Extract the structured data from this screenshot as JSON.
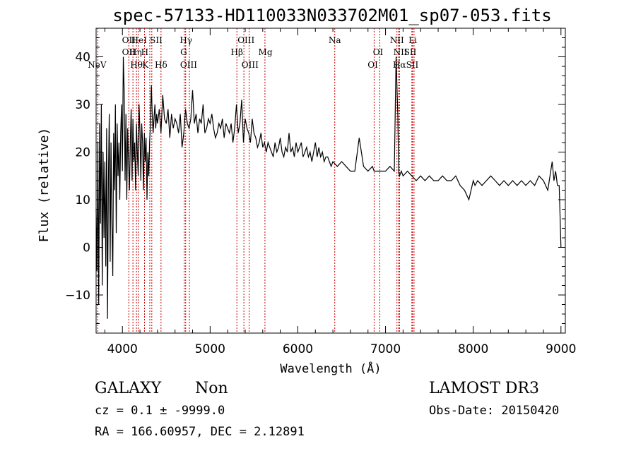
{
  "title": "spec-57133-HD110033N033702M01_sp07-053.fits",
  "info": {
    "object_class": "GALAXY",
    "subclass": "Non",
    "survey": "LAMOST DR3",
    "cz_line": "cz = 0.1 ± -9999.0",
    "obs_date_line": "Obs-Date: 20150420",
    "radec_line": "RA = 166.60957, DEC =   2.12891"
  },
  "chart_data": {
    "type": "line",
    "title": "spec-57133-HD110033N033702M01_sp07-053.fits",
    "xlabel": "Wavelength (Å)",
    "ylabel": "Flux (relative)",
    "xlim": [
      3700,
      9050
    ],
    "ylim": [
      -18,
      46
    ],
    "xticks": [
      4000,
      5000,
      6000,
      7000,
      8000,
      9000
    ],
    "yticks": [
      -10,
      0,
      10,
      20,
      30,
      40
    ],
    "line_color": "#000000",
    "marker_color": "#cc0000",
    "spectrum": {
      "x": [
        3700,
        3710,
        3720,
        3730,
        3740,
        3750,
        3760,
        3770,
        3780,
        3790,
        3800,
        3810,
        3820,
        3830,
        3840,
        3850,
        3860,
        3870,
        3880,
        3890,
        3900,
        3910,
        3920,
        3930,
        3940,
        3950,
        3960,
        3970,
        3980,
        3990,
        4000,
        4010,
        4020,
        4030,
        4040,
        4050,
        4060,
        4070,
        4080,
        4090,
        4100,
        4110,
        4120,
        4130,
        4140,
        4150,
        4160,
        4170,
        4180,
        4190,
        4200,
        4210,
        4220,
        4230,
        4240,
        4250,
        4260,
        4270,
        4280,
        4290,
        4300,
        4310,
        4320,
        4330,
        4340,
        4350,
        4360,
        4370,
        4380,
        4390,
        4400,
        4420,
        4440,
        4460,
        4480,
        4500,
        4520,
        4540,
        4560,
        4580,
        4600,
        4620,
        4640,
        4660,
        4680,
        4700,
        4720,
        4740,
        4760,
        4780,
        4800,
        4820,
        4840,
        4860,
        4880,
        4900,
        4920,
        4940,
        4960,
        4980,
        5000,
        5020,
        5040,
        5060,
        5080,
        5100,
        5120,
        5140,
        5160,
        5180,
        5200,
        5220,
        5240,
        5260,
        5280,
        5300,
        5320,
        5340,
        5360,
        5380,
        5400,
        5420,
        5440,
        5460,
        5480,
        5500,
        5520,
        5540,
        5560,
        5580,
        5600,
        5620,
        5640,
        5660,
        5680,
        5700,
        5720,
        5740,
        5760,
        5780,
        5800,
        5820,
        5840,
        5860,
        5880,
        5900,
        5920,
        5940,
        5960,
        5980,
        6000,
        6020,
        6040,
        6060,
        6080,
        6100,
        6120,
        6140,
        6160,
        6180,
        6200,
        6220,
        6240,
        6260,
        6280,
        6300,
        6320,
        6340,
        6360,
        6380,
        6400,
        6450,
        6500,
        6550,
        6600,
        6650,
        6700,
        6750,
        6800,
        6850,
        6870,
        6900,
        6950,
        7000,
        7050,
        7100,
        7120,
        7140,
        7150,
        7160,
        7180,
        7200,
        7250,
        7300,
        7350,
        7400,
        7450,
        7500,
        7550,
        7600,
        7650,
        7700,
        7750,
        7800,
        7850,
        7900,
        7950,
        8000,
        8020,
        8050,
        8100,
        8150,
        8200,
        8250,
        8300,
        8350,
        8400,
        8450,
        8500,
        8550,
        8600,
        8650,
        8700,
        8750,
        8800,
        8850,
        8900,
        8920,
        8940,
        8960,
        8980,
        9000
      ],
      "y": [
        8,
        -5,
        22,
        -12,
        26,
        5,
        30,
        -8,
        20,
        2,
        18,
        -4,
        25,
        -15,
        14,
        28,
        -3,
        22,
        6,
        -6,
        24,
        12,
        30,
        3,
        26,
        15,
        22,
        10,
        24,
        30,
        16,
        40,
        33,
        14,
        28,
        10,
        25,
        18,
        12,
        22,
        29,
        14,
        27,
        18,
        22,
        12,
        26,
        20,
        15,
        30,
        24,
        14,
        26,
        22,
        12,
        24,
        18,
        23,
        10,
        20,
        15,
        22,
        26,
        34,
        28,
        24,
        27,
        30,
        25,
        28,
        26,
        29,
        24,
        32,
        27,
        26,
        29,
        23,
        28,
        25,
        27,
        26,
        24,
        28,
        21,
        24,
        29,
        26,
        25,
        27,
        33,
        26,
        28,
        24,
        27,
        26,
        30,
        24,
        25,
        27,
        26,
        28,
        25,
        23,
        24,
        26,
        25,
        27,
        23,
        26,
        25,
        24,
        26,
        22,
        25,
        30,
        24,
        26,
        31,
        22,
        27,
        25,
        24,
        22,
        27,
        24,
        23,
        21,
        22,
        24,
        21,
        22,
        20,
        22,
        21,
        20,
        19,
        22,
        20,
        21,
        23,
        20,
        19,
        21,
        20,
        24,
        20,
        21,
        19,
        22,
        20,
        21,
        22,
        19,
        20,
        21,
        19,
        20,
        18,
        20,
        22,
        19,
        21,
        19,
        20,
        18,
        19,
        19,
        18,
        17,
        18,
        17,
        18,
        17,
        16,
        16,
        23,
        17,
        16,
        17,
        16,
        16,
        16,
        16,
        17,
        16,
        40,
        28,
        16,
        15,
        16,
        15,
        16,
        15,
        14,
        15,
        14,
        15,
        14,
        14,
        15,
        14,
        14,
        15,
        13,
        12,
        10,
        14,
        13,
        14,
        13,
        14,
        15,
        14,
        13,
        14,
        13,
        14,
        13,
        14,
        13,
        14,
        13,
        15,
        14,
        12,
        18,
        14,
        16,
        13,
        13,
        0
      ]
    },
    "lines": [
      {
        "name": "NeV",
        "wavelength": 3720,
        "row": 3,
        "label_x": 3711
      },
      {
        "name": "OII",
        "wavelength": 4073,
        "row": 1,
        "label_x": 4073
      },
      {
        "name": "OII",
        "wavelength": 4073,
        "row": 2,
        "label_x": 4073
      },
      {
        "name": "Hθ",
        "wavelength": 4160,
        "row": 3,
        "label_x": 4160
      },
      {
        "name": "Hη",
        "wavelength": 4120,
        "row": 2,
        "label_x": 4150
      },
      {
        "name": "HeI",
        "wavelength": 4180,
        "row": 1,
        "label_x": 4190
      },
      {
        "name": "H",
        "wavelength": 4252,
        "row": 2,
        "label_x": 4255
      },
      {
        "name": "K",
        "wavelength": 4312,
        "row": 3,
        "label_x": 4262
      },
      {
        "name": "SII",
        "wavelength": 4335,
        "row": 1,
        "label_x": 4385
      },
      {
        "name": "Hδ",
        "wavelength": 4440,
        "row": 3,
        "label_x": 4440
      },
      {
        "name": "Hγ",
        "wavelength": 4705,
        "row": 1,
        "label_x": 4725
      },
      {
        "name": "G",
        "wavelength": 4721,
        "row": 2,
        "label_x": 4698
      },
      {
        "name": "OIII",
        "wavelength": 4764,
        "row": 3,
        "label_x": 4755
      },
      {
        "name": "Hβ",
        "wavelength": 5305,
        "row": 2,
        "label_x": 5305
      },
      {
        "name": "OIII",
        "wavelength": 5385,
        "row": 1,
        "label_x": 5410
      },
      {
        "name": "OIII",
        "wavelength": 5445,
        "row": 3,
        "label_x": 5455
      },
      {
        "name": "Mg",
        "wavelength": 5625,
        "row": 2,
        "label_x": 5630
      },
      {
        "name": "Na",
        "wavelength": 6421,
        "row": 1,
        "label_x": 6421
      },
      {
        "name": "OI",
        "wavelength": 6870,
        "row": 2,
        "label_x": 6915
      },
      {
        "name": "OI",
        "wavelength": 6935,
        "row": 3,
        "label_x": 6855
      },
      {
        "name": "NII",
        "wavelength": 7130,
        "row": 1,
        "label_x": 7130
      },
      {
        "name": "Hα",
        "wavelength": 7148,
        "row": 3,
        "label_x": 7158
      },
      {
        "name": "NII",
        "wavelength": 7160,
        "row": 2,
        "label_x": 7170
      },
      {
        "name": "SII",
        "wavelength": 7300,
        "row": 2,
        "label_x": 7282
      },
      {
        "name": "Li",
        "wavelength": 7308,
        "row": 1,
        "label_x": 7310
      },
      {
        "name": "SII",
        "wavelength": 7325,
        "row": 3,
        "label_x": 7305
      }
    ]
  }
}
